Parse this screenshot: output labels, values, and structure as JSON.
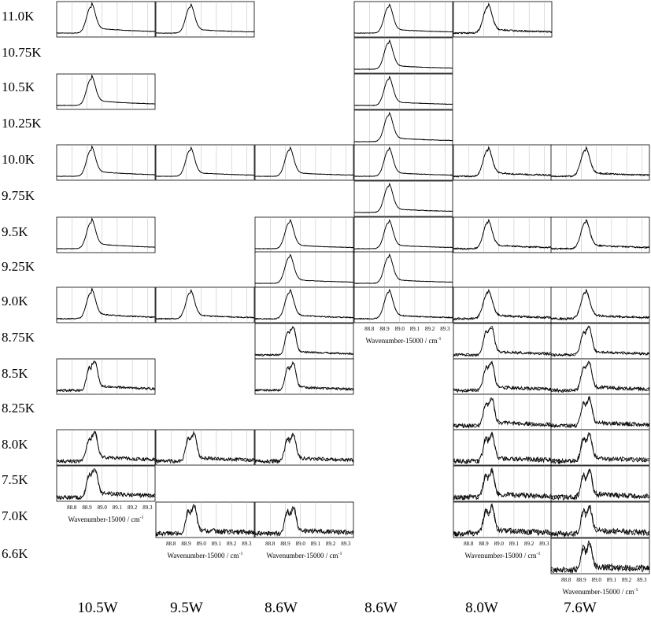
{
  "chart_data": {
    "type": "line",
    "description_x": "Wavenumber-15000 / cm-1",
    "xlim": [
      88.7,
      89.35
    ],
    "x_ticks": [
      "88.8",
      "88.9",
      "89.0",
      "89.1",
      "89.2",
      "89.3"
    ],
    "x_axis_label": "Wavenumber-15000 / cm",
    "x_axis_label_sup": "-1",
    "columns": [
      "10.5W",
      "9.5W",
      "8.6W",
      "8.6W",
      "8.0W",
      "7.6W"
    ],
    "rows": [
      "11.0K",
      "10.75K",
      "10.5K",
      "10.25K",
      "10.0K",
      "9.75K",
      "9.5K",
      "9.25K",
      "9.0K",
      "8.75K",
      "8.5K",
      "8.25K",
      "8.0K",
      "7.5K",
      "7.0K",
      "6.6K"
    ],
    "panels": [
      {
        "col": 0,
        "row": "11.0K"
      },
      {
        "col": 1,
        "row": "11.0K"
      },
      {
        "col": 3,
        "row": "11.0K"
      },
      {
        "col": 4,
        "row": "11.0K"
      },
      {
        "col": 3,
        "row": "10.75K"
      },
      {
        "col": 0,
        "row": "10.5K"
      },
      {
        "col": 3,
        "row": "10.5K"
      },
      {
        "col": 3,
        "row": "10.25K"
      },
      {
        "col": 0,
        "row": "10.0K"
      },
      {
        "col": 1,
        "row": "10.0K"
      },
      {
        "col": 2,
        "row": "10.0K"
      },
      {
        "col": 3,
        "row": "10.0K"
      },
      {
        "col": 4,
        "row": "10.0K"
      },
      {
        "col": 5,
        "row": "10.0K"
      },
      {
        "col": 3,
        "row": "9.75K"
      },
      {
        "col": 0,
        "row": "9.5K"
      },
      {
        "col": 2,
        "row": "9.5K"
      },
      {
        "col": 3,
        "row": "9.5K"
      },
      {
        "col": 4,
        "row": "9.5K"
      },
      {
        "col": 5,
        "row": "9.5K"
      },
      {
        "col": 2,
        "row": "9.25K"
      },
      {
        "col": 3,
        "row": "9.25K"
      },
      {
        "col": 0,
        "row": "9.0K"
      },
      {
        "col": 1,
        "row": "9.0K"
      },
      {
        "col": 2,
        "row": "9.0K"
      },
      {
        "col": 3,
        "row": "9.0K"
      },
      {
        "col": 4,
        "row": "9.0K"
      },
      {
        "col": 5,
        "row": "9.0K"
      },
      {
        "col": 2,
        "row": "8.75K"
      },
      {
        "col": 4,
        "row": "8.75K"
      },
      {
        "col": 5,
        "row": "8.75K"
      },
      {
        "col": 0,
        "row": "8.5K"
      },
      {
        "col": 2,
        "row": "8.5K"
      },
      {
        "col": 4,
        "row": "8.5K"
      },
      {
        "col": 5,
        "row": "8.5K"
      },
      {
        "col": 4,
        "row": "8.25K"
      },
      {
        "col": 5,
        "row": "8.25K"
      },
      {
        "col": 0,
        "row": "8.0K"
      },
      {
        "col": 1,
        "row": "8.0K"
      },
      {
        "col": 2,
        "row": "8.0K"
      },
      {
        "col": 4,
        "row": "8.0K"
      },
      {
        "col": 5,
        "row": "8.0K"
      },
      {
        "col": 0,
        "row": "7.5K"
      },
      {
        "col": 4,
        "row": "7.5K"
      },
      {
        "col": 5,
        "row": "7.5K"
      },
      {
        "col": 1,
        "row": "7.0K"
      },
      {
        "col": 2,
        "row": "7.0K"
      },
      {
        "col": 4,
        "row": "7.0K"
      },
      {
        "col": 5,
        "row": "7.0K"
      },
      {
        "col": 5,
        "row": "6.6K"
      }
    ],
    "series_note": "Each panel overlays two normalized spectra; single peak near 88.92 cm-1 that splits into a doublet (88.92 / 88.96) at lower temperature and lower power."
  }
}
